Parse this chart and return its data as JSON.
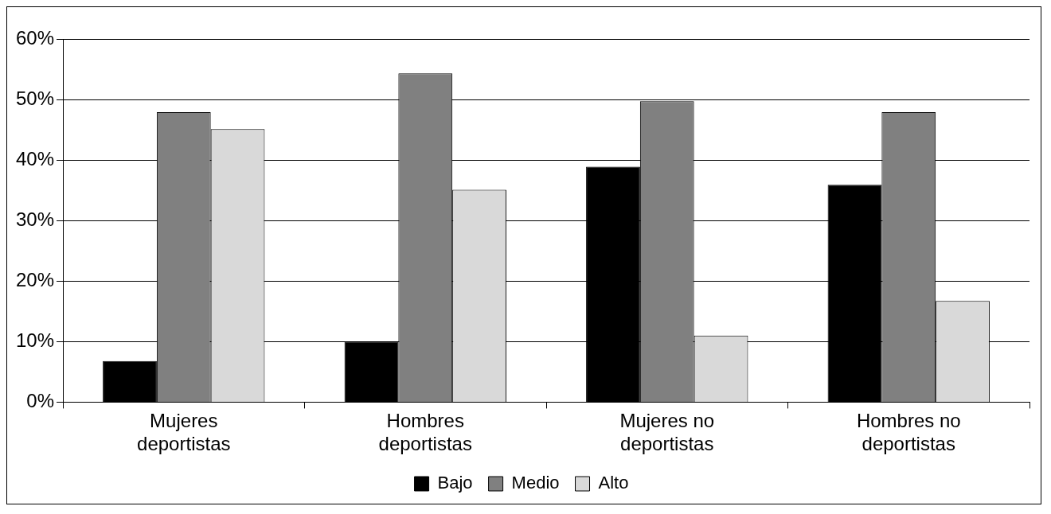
{
  "chart_data": {
    "type": "bar",
    "categories": [
      "Mujeres deportistas",
      "Hombres deportistas",
      "Mujeres no deportistas",
      "Hombres no deportistas"
    ],
    "series": [
      {
        "name": "Bajo",
        "color": "#000000",
        "values": [
          6.8,
          10,
          38.9,
          35.9
        ]
      },
      {
        "name": "Medio",
        "color": "#808080",
        "values": [
          47.9,
          54.3,
          49.7,
          47.9
        ]
      },
      {
        "name": "Alto",
        "color": "#d9d9d9",
        "values": [
          45.1,
          35.1,
          11,
          16.7
        ]
      }
    ],
    "ylim": [
      0,
      60
    ],
    "yticks": [
      {
        "value": 0,
        "label": "0%"
      },
      {
        "value": 10,
        "label": "10%"
      },
      {
        "value": 20,
        "label": "20%"
      },
      {
        "value": 30,
        "label": "30%"
      },
      {
        "value": 40,
        "label": "40%"
      },
      {
        "value": 50,
        "label": "50%"
      },
      {
        "value": 60,
        "label": "60%"
      }
    ],
    "grid": "y",
    "legend": "bottom"
  }
}
